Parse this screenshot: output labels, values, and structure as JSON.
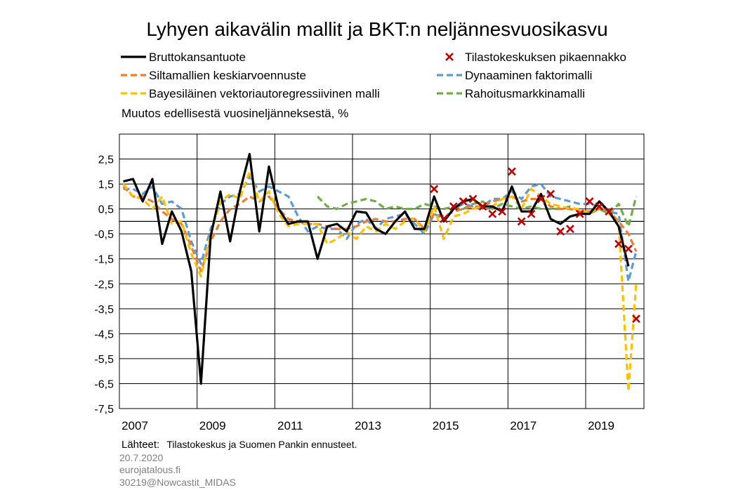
{
  "chart_data": {
    "type": "line",
    "title": "Lyhyen aikavälin mallit ja BKT:n neljännesvuosikasvu",
    "ylabel": "Muutos edellisestä vuosineljänneksestä, %",
    "ylim": [
      -7.5,
      3.5
    ],
    "yticks": [
      2.5,
      1.5,
      0.5,
      -0.5,
      -1.5,
      -2.5,
      -3.5,
      -4.5,
      -5.5,
      -6.5,
      -7.5
    ],
    "ytick_labels": [
      "2,5",
      "1,5",
      "0,5",
      "-0,5",
      "-1,5",
      "-2,5",
      "-3,5",
      "-4,5",
      "-5,5",
      "-6,5",
      "-7,5"
    ],
    "xlim": [
      2007.0,
      2020.5
    ],
    "xgrid": [
      2007,
      2009,
      2011,
      2013,
      2015,
      2017,
      2019
    ],
    "xticks": [
      2007,
      2009,
      2011,
      2013,
      2015,
      2017,
      2019
    ],
    "xtick_labels": [
      "2007",
      "2009",
      "2011",
      "2013",
      "2015",
      "2017",
      "2019"
    ],
    "grid": true,
    "legend_placement": "top",
    "series": [
      {
        "name": "Bruttokansantuote",
        "color": "#000000",
        "style": "solid",
        "kind": "line",
        "x": [
          2007.1,
          2007.35,
          2007.6,
          2007.85,
          2008.1,
          2008.35,
          2008.6,
          2008.85,
          2009.1,
          2009.35,
          2009.6,
          2009.85,
          2010.1,
          2010.35,
          2010.6,
          2010.85,
          2011.1,
          2011.35,
          2011.6,
          2011.85,
          2012.1,
          2012.35,
          2012.6,
          2012.85,
          2013.1,
          2013.35,
          2013.6,
          2013.85,
          2014.1,
          2014.35,
          2014.6,
          2014.85,
          2015.1,
          2015.35,
          2015.6,
          2015.85,
          2016.1,
          2016.35,
          2016.6,
          2016.85,
          2017.1,
          2017.35,
          2017.6,
          2017.85,
          2018.1,
          2018.35,
          2018.6,
          2018.85,
          2019.1,
          2019.35,
          2019.6,
          2019.85,
          2020.1
        ],
        "y": [
          1.6,
          1.7,
          0.8,
          1.7,
          -0.9,
          0.4,
          -0.4,
          -2.0,
          -6.5,
          -0.6,
          1.2,
          -0.8,
          1.2,
          2.7,
          -0.4,
          2.2,
          0.5,
          -0.1,
          0.0,
          0.0,
          -1.5,
          -0.2,
          -0.1,
          -0.4,
          0.4,
          0.35,
          -0.3,
          -0.5,
          0.0,
          0.4,
          -0.3,
          -0.3,
          1.0,
          0.0,
          0.5,
          0.8,
          0.9,
          0.6,
          0.6,
          0.4,
          1.4,
          0.4,
          0.4,
          1.1,
          0.1,
          -0.1,
          0.2,
          0.3,
          0.3,
          0.8,
          0.4,
          -0.2,
          -1.8
        ]
      },
      {
        "name": "Siltamallien keskiarvoennuste",
        "color": "#ED7D31",
        "style": "dash",
        "kind": "line",
        "x": [
          2007.1,
          2007.35,
          2007.6,
          2007.85,
          2008.1,
          2008.35,
          2008.6,
          2008.85,
          2009.1,
          2009.35,
          2009.6,
          2009.85,
          2010.1,
          2010.35,
          2010.6,
          2010.85,
          2011.1,
          2011.35,
          2011.6,
          2011.85,
          2012.1,
          2012.35,
          2012.6,
          2012.85,
          2013.1,
          2013.35,
          2013.6,
          2013.85,
          2014.1,
          2014.35,
          2014.6,
          2014.85,
          2015.1,
          2015.35,
          2015.6,
          2015.85,
          2016.1,
          2016.35,
          2016.6,
          2016.85,
          2017.1,
          2017.35,
          2017.6,
          2017.85,
          2018.1,
          2018.35,
          2018.6,
          2018.85,
          2019.1,
          2019.35,
          2019.6,
          2019.85,
          2020.1,
          2020.3
        ],
        "y": [
          1.4,
          1.0,
          1.0,
          0.8,
          0.4,
          0.1,
          -0.1,
          -1.0,
          -2.0,
          -0.8,
          0.0,
          0.5,
          0.7,
          1.0,
          0.8,
          1.0,
          0.5,
          0.1,
          0.0,
          -0.1,
          -0.1,
          -0.2,
          -0.3,
          -0.3,
          -0.2,
          0.0,
          0.1,
          0.0,
          0.0,
          0.1,
          0.1,
          -0.3,
          0.3,
          0.2,
          0.4,
          0.5,
          0.6,
          0.6,
          0.8,
          0.9,
          1.0,
          0.8,
          0.9,
          0.9,
          0.6,
          0.5,
          0.5,
          0.4,
          0.4,
          0.5,
          0.4,
          0.0,
          -0.5,
          -1.2
        ]
      },
      {
        "name": "Bayesiläinen vektoriautoregressiivinen malli",
        "color": "#FFC000",
        "style": "dash",
        "kind": "line",
        "x": [
          2007.1,
          2007.35,
          2007.6,
          2007.85,
          2008.1,
          2008.35,
          2008.6,
          2008.85,
          2009.1,
          2009.35,
          2009.6,
          2009.85,
          2010.1,
          2010.35,
          2010.6,
          2010.85,
          2011.1,
          2011.35,
          2011.6,
          2011.85,
          2012.1,
          2012.35,
          2012.6,
          2012.85,
          2013.1,
          2013.35,
          2013.6,
          2013.85,
          2014.1,
          2014.35,
          2014.6,
          2014.85,
          2015.1,
          2015.35,
          2015.6,
          2015.85,
          2016.1,
          2016.35,
          2016.6,
          2016.85,
          2017.1,
          2017.35,
          2017.6,
          2017.85,
          2018.1,
          2018.35,
          2018.6,
          2018.85,
          2019.1,
          2019.35,
          2019.6,
          2019.85,
          2020.1,
          2020.3
        ],
        "y": [
          1.5,
          1.0,
          0.9,
          0.5,
          1.0,
          -0.1,
          0.0,
          -1.3,
          -2.2,
          -0.5,
          0.8,
          1.1,
          0.9,
          2.0,
          0.8,
          1.2,
          0.3,
          -0.2,
          -0.1,
          -0.1,
          -0.1,
          -0.9,
          -0.7,
          -0.4,
          -0.7,
          -0.2,
          -0.4,
          -0.1,
          -0.3,
          0.0,
          0.1,
          -0.4,
          0.6,
          -0.7,
          0.2,
          0.3,
          0.5,
          0.6,
          0.6,
          0.9,
          1.0,
          0.5,
          1.3,
          1.0,
          0.7,
          0.6,
          0.5,
          0.5,
          0.3,
          0.6,
          0.3,
          -0.1,
          -6.8,
          -2.5
        ]
      },
      {
        "name": "Dynaaminen faktorimalli",
        "color": "#5B9BD5",
        "style": "dash",
        "kind": "line",
        "x": [
          2007.1,
          2007.35,
          2007.6,
          2007.85,
          2008.1,
          2008.35,
          2008.6,
          2008.85,
          2009.1,
          2009.35,
          2009.6,
          2009.85,
          2010.1,
          2010.35,
          2010.6,
          2010.85,
          2011.1,
          2011.35,
          2011.6,
          2011.85,
          2012.1,
          2012.35,
          2012.6,
          2012.85,
          2013.1,
          2013.35,
          2013.6,
          2013.85,
          2014.1,
          2014.35,
          2014.6,
          2014.85,
          2015.1,
          2015.35,
          2015.6,
          2015.85,
          2016.1,
          2016.35,
          2016.6,
          2016.85,
          2017.1,
          2017.35,
          2017.6,
          2017.85,
          2018.1,
          2018.35,
          2018.6,
          2018.85,
          2019.1,
          2019.35,
          2019.6,
          2019.85,
          2020.1,
          2020.3
        ],
        "y": [
          1.3,
          1.3,
          1.1,
          1.4,
          0.7,
          0.8,
          0.5,
          -0.8,
          -1.7,
          -0.3,
          0.7,
          1.0,
          1.1,
          1.8,
          1.2,
          1.4,
          1.2,
          1.0,
          0.2,
          -0.4,
          -0.2,
          -0.3,
          -0.3,
          -0.7,
          -0.1,
          0.1,
          -0.3,
          0.1,
          0.2,
          0.3,
          -0.1,
          -0.5,
          0.3,
          0.1,
          0.5,
          0.7,
          0.6,
          0.6,
          0.9,
          0.9,
          1.2,
          0.9,
          1.4,
          1.5,
          1.0,
          0.9,
          0.8,
          0.7,
          0.7,
          0.6,
          0.4,
          0.3,
          -2.4,
          -1.2
        ]
      },
      {
        "name": "Rahoitusmarkkinamalli",
        "color": "#70AD47",
        "style": "dash",
        "kind": "line",
        "x": [
          2012.1,
          2012.35,
          2012.6,
          2012.85,
          2013.1,
          2013.35,
          2013.6,
          2013.85,
          2014.1,
          2014.35,
          2014.6,
          2014.85,
          2015.1,
          2015.35,
          2015.6,
          2015.85,
          2016.1,
          2016.35,
          2016.6,
          2016.85,
          2017.1,
          2017.35,
          2017.6,
          2017.85,
          2018.1,
          2018.35,
          2018.6,
          2018.85,
          2019.1,
          2019.35,
          2019.6,
          2019.85,
          2020.1,
          2020.3
        ],
        "y": [
          1.0,
          0.6,
          0.5,
          0.7,
          0.8,
          0.9,
          0.8,
          0.5,
          0.6,
          0.5,
          0.5,
          0.7,
          0.6,
          0.5,
          0.6,
          0.5,
          0.7,
          0.8,
          0.5,
          0.7,
          0.6,
          0.5,
          0.6,
          0.5,
          0.5,
          0.5,
          0.6,
          0.4,
          0.3,
          0.5,
          0.3,
          0.7,
          -0.2,
          1.0
        ]
      },
      {
        "name": "Tilastokeskuksen pikaennakko",
        "color": "#C00000",
        "style": "marker",
        "kind": "scatter",
        "x": [
          2015.1,
          2015.35,
          2015.6,
          2015.85,
          2016.1,
          2016.35,
          2016.6,
          2016.85,
          2017.1,
          2017.35,
          2017.6,
          2017.85,
          2018.1,
          2018.35,
          2018.6,
          2018.85,
          2019.1,
          2019.35,
          2019.6,
          2019.85,
          2020.1
        ],
        "y": [
          1.3,
          0.1,
          0.6,
          0.8,
          0.9,
          0.6,
          0.3,
          0.4,
          2.0,
          0.0,
          0.3,
          0.9,
          1.1,
          -0.4,
          -0.3,
          0.3,
          0.8,
          0.6,
          0.4,
          -0.9,
          -1.1
        ]
      }
    ],
    "extra_markers": [
      {
        "x": 2020.3,
        "y": -3.9
      }
    ]
  },
  "footer": {
    "source_label": "Lähteet:",
    "source_text": "Tilastokeskus ja Suomen Pankin ennusteet.",
    "date": "20.7.2020",
    "site": "eurojatalous.fi",
    "code": "30219@Nowcastit_MIDAS"
  }
}
